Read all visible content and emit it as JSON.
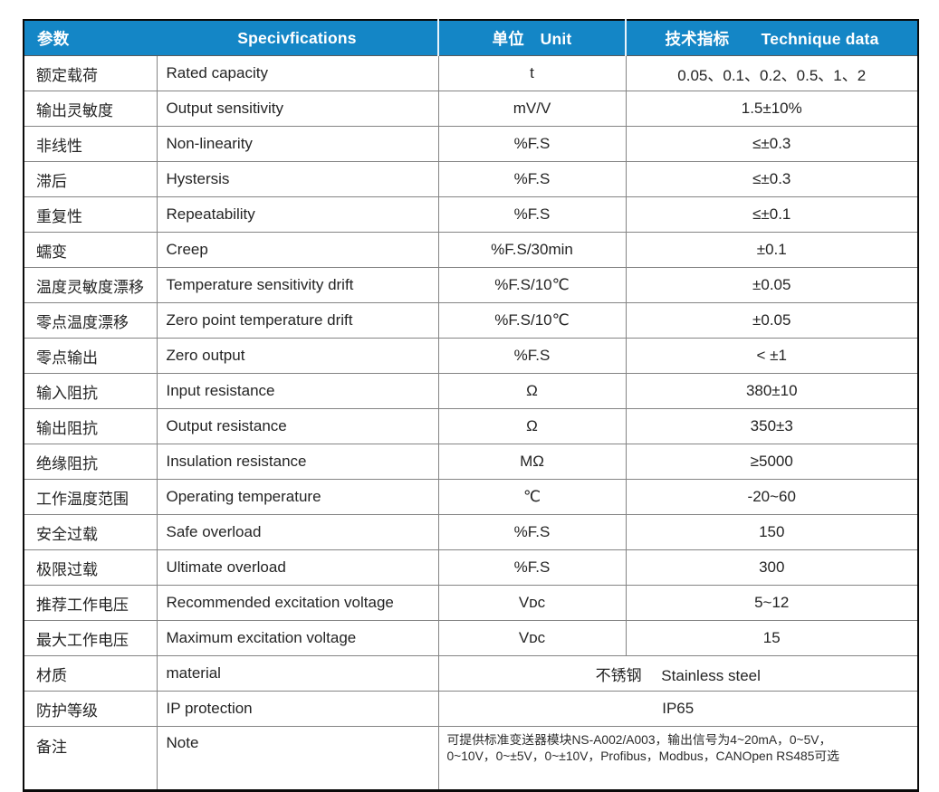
{
  "colors": {
    "header_bg": "#1486c6",
    "header_text": "#ffffff",
    "grid_border": "#848484",
    "outer_border": "#0a0a0a",
    "body_text": "#242424"
  },
  "table": {
    "headers": {
      "param": "参数",
      "spec": "Specivfications",
      "unit": "单位　Unit",
      "tech": "技术指标　　Technique data"
    },
    "rows": [
      {
        "cn": "额定载荷",
        "en": "Rated capacity",
        "unit": "t",
        "value": "0.05、0.1、0.2、0.5、1、2"
      },
      {
        "cn": "输出灵敏度",
        "en": "Output sensitivity",
        "unit": "mV/V",
        "value": "1.5±10%"
      },
      {
        "cn": "非线性",
        "en": "Non-linearity",
        "unit": "%F.S",
        "value": "≤±0.3"
      },
      {
        "cn": "滞后",
        "en": "Hystersis",
        "unit": "%F.S",
        "value": "≤±0.3"
      },
      {
        "cn": "重复性",
        "en": "Repeatability",
        "unit": "%F.S",
        "value": "≤±0.1"
      },
      {
        "cn": "蠕变",
        "en": "Creep",
        "unit": "%F.S/30min",
        "value": "±0.1"
      },
      {
        "cn": "温度灵敏度漂移",
        "en": "Temperature sensitivity drift",
        "unit": "%F.S/10℃",
        "value": "±0.05"
      },
      {
        "cn": "零点温度漂移",
        "en": "Zero point temperature drift",
        "unit": "%F.S/10℃",
        "value": "±0.05"
      },
      {
        "cn": "零点输出",
        "en": "Zero output",
        "unit": "%F.S",
        "value": "< ±1"
      },
      {
        "cn": "输入阻抗",
        "en": "Input resistance",
        "unit": "Ω",
        "value": "380±10"
      },
      {
        "cn": "输出阻抗",
        "en": "Output resistance",
        "unit": "Ω",
        "value": "350±3"
      },
      {
        "cn": "绝缘阻抗",
        "en": "Insulation resistance",
        "unit": "MΩ",
        "value": "≥5000"
      },
      {
        "cn": "工作温度范围",
        "en": "Operating temperature",
        "unit": "℃",
        "value": "-20~60"
      },
      {
        "cn": "安全过载",
        "en": "Safe overload",
        "unit": "%F.S",
        "value": "150"
      },
      {
        "cn": "极限过载",
        "en": "Ultimate overload",
        "unit": "%F.S",
        "value": "300"
      },
      {
        "cn": "推荐工作电压",
        "en": "Recommended excitation voltage",
        "unit": "Vᴅᴄ",
        "value": "5~12"
      },
      {
        "cn": "最大工作电压",
        "en": "Maximum excitation voltage",
        "unit": "Vᴅᴄ",
        "value": "15"
      }
    ],
    "material_row": {
      "cn": "材质",
      "en": "material",
      "value": "不锈钢　 Stainless steel"
    },
    "ip_row": {
      "cn": "防护等级",
      "en": "IP protection",
      "value": "IP65"
    },
    "note_row": {
      "cn": "备注",
      "en": "Note",
      "value": "可提供标准变送器模块NS-A002/A003，输出信号为4~20mA，0~5V，\n0~10V，0~±5V，0~±10V，Profibus，Modbus，CANOpen RS485可选"
    }
  }
}
